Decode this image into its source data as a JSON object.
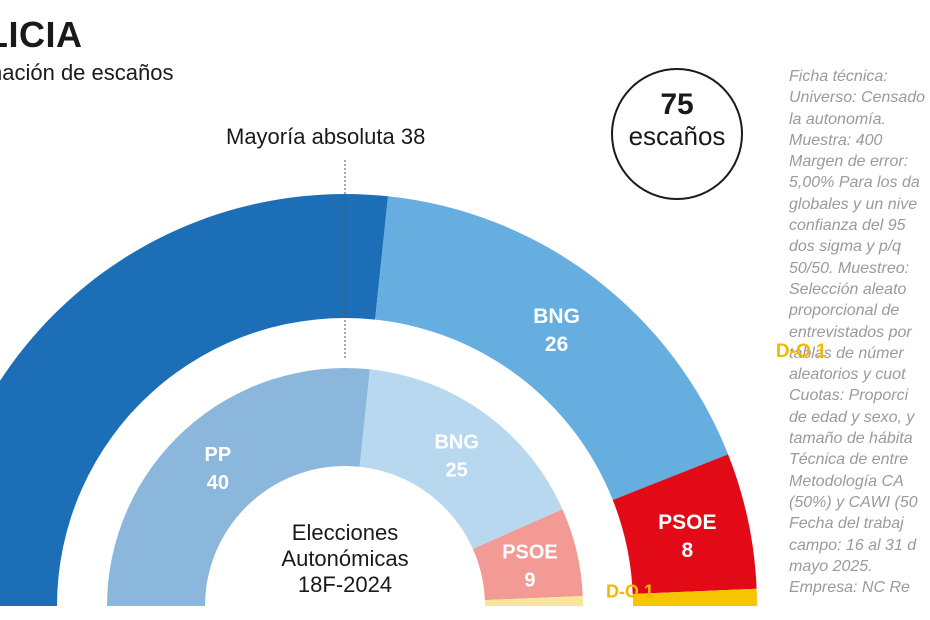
{
  "header": {
    "title": "LICIA",
    "subtitle": "nación de escaños"
  },
  "majority_label": "Mayoría absoluta 38",
  "seats_badge": {
    "number": "75",
    "word": "escaños"
  },
  "center_label": [
    "Elecciones",
    "Autonómicas",
    "18F-2024"
  ],
  "ficha": [
    "Ficha técnica:",
    "Universo: Censado",
    "la autonomía.",
    "Muestra: 400",
    "Margen de error:",
    "5,00% Para los da",
    "globales y un nive",
    "confianza del 95",
    "dos sigma y p/q",
    "50/50. Muestreo:",
    "Selección aleato",
    "proporcional de",
    "entrevistados por",
    "tablas de númer",
    "aleatorios y cuot",
    "Cuotas: Proporci",
    "de edad y sexo, y",
    "tamaño de hábita",
    "Técnica de entre",
    "Metodología CA",
    "(50%) y CAWI (50",
    "Fecha del trabaj",
    "campo: 16 al 31 d",
    "mayo 2025.",
    "Empresa: NC Re"
  ],
  "chart_data": {
    "type": "parliament_semicircle",
    "total_seats": 75,
    "majority": 38,
    "rings": [
      {
        "name": "",
        "parties": [
          {
            "party": "PP",
            "seats": 40,
            "color": "#1c6fb6",
            "label_color": "#ffffff",
            "show_label": false
          },
          {
            "party": "BNG",
            "seats": 26,
            "color": "#66ade0",
            "label_color": "#ffffff",
            "show_label": true
          },
          {
            "party": "PSOE",
            "seats": 8,
            "color": "#e20a17",
            "label_color": "#ffffff",
            "show_label": true
          },
          {
            "party": "D-O",
            "seats": 1,
            "color": "#f7c600",
            "label_color": "#f2b900",
            "show_label": true,
            "outside": true
          }
        ]
      },
      {
        "name": "Elecciones Autonómicas 18F-2024",
        "parties": [
          {
            "party": "PP",
            "seats": 40,
            "color": "#8cb7dc",
            "label_color": "#ffffff",
            "show_label": true
          },
          {
            "party": "BNG",
            "seats": 25,
            "color": "#b7d8ef",
            "label_color": "#ffffff",
            "show_label": true
          },
          {
            "party": "PSOE",
            "seats": 9,
            "color": "#f29a93",
            "label_color": "#ffffff",
            "show_label": true
          },
          {
            "party": "D-O",
            "seats": 1,
            "color": "#f9e59d",
            "label_color": "#f2b900",
            "show_label": true,
            "outside": true
          }
        ]
      }
    ]
  }
}
